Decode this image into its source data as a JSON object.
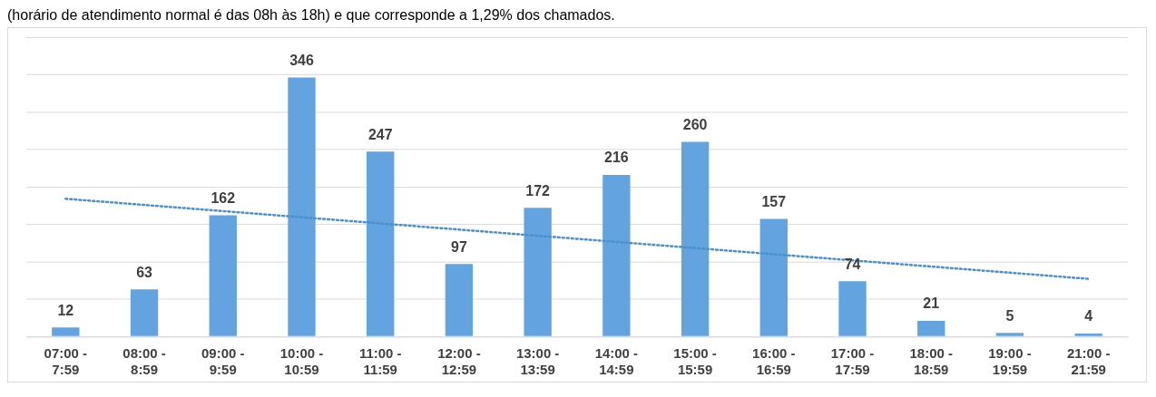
{
  "chart_data": {
    "type": "bar",
    "annotations": [
      "(horário de atendimento normal é das 08h às 18h) e que corresponde a 1,29% dos chamados."
    ],
    "categories": [
      "07:00 -\n7:59",
      "08:00 -\n8:59",
      "09:00 -\n9:59",
      "10:00 -\n10:59",
      "11:00 -\n11:59",
      "12:00 -\n12:59",
      "13:00 -\n13:59",
      "14:00 -\n14:59",
      "15:00 -\n15:59",
      "16:00 -\n16:59",
      "17:00 -\n17:59",
      "18:00 -\n18:59",
      "19:00 -\n19:59",
      "21:00 -\n21:59"
    ],
    "series": [
      {
        "color": "#62a3e0",
        "values": [
          12,
          63,
          162,
          346,
          247,
          97,
          172,
          216,
          260,
          157,
          74,
          21,
          5,
          4
        ],
        "value_labels": [
          "12",
          "63",
          "162",
          "346",
          "247",
          "97",
          "172",
          "216",
          "260",
          "157",
          "74",
          "21",
          "5",
          "4"
        ]
      },
      {
        "type": "line",
        "color": "#4a8fd0",
        "line_style": "dotted",
        "marker": "none",
        "x": [
          "07:00 -\n7:59",
          "21:00 -\n21:59"
        ],
        "values": [
          184,
          77
        ]
      }
    ],
    "grid": "y",
    "tick_labels": "x",
    "legend": false
  }
}
